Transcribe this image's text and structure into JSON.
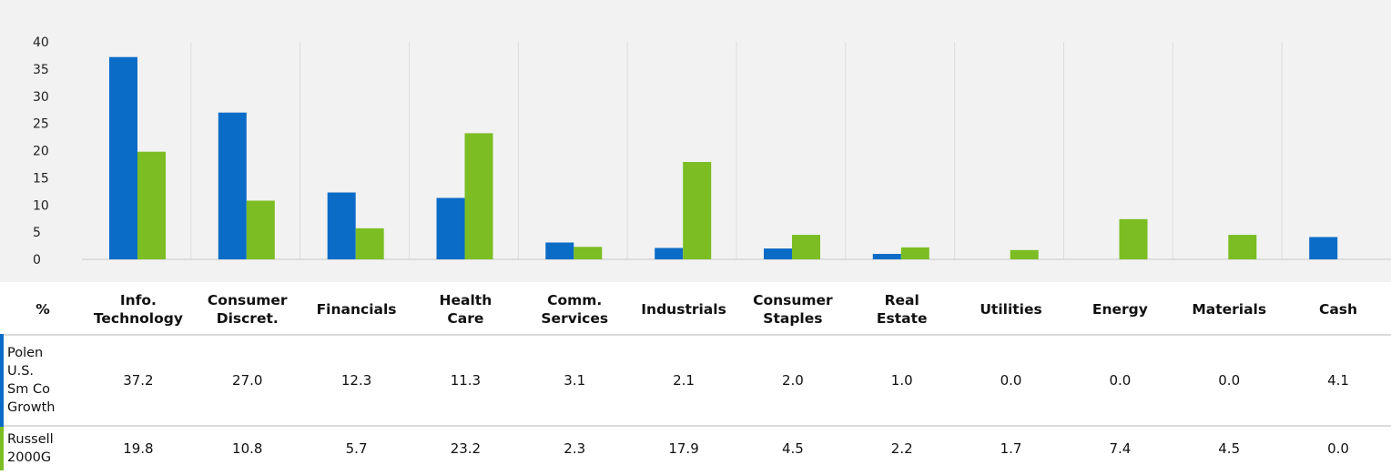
{
  "chart_data": {
    "type": "bar",
    "categories": [
      "Info. Technology",
      "Consumer Discret.",
      "Financials",
      "Health Care",
      "Comm. Services",
      "Industrials",
      "Consumer Staples",
      "Real Estate",
      "Utilities",
      "Energy",
      "Materials",
      "Cash"
    ],
    "series": [
      {
        "name": "Polen U.S. Sm Co Growth",
        "values": [
          37.2,
          27.0,
          12.3,
          11.3,
          3.1,
          2.1,
          2.0,
          1.0,
          0.0,
          0.0,
          0.0,
          4.1
        ],
        "color": "#0a6cc7"
      },
      {
        "name": "Russell 2000G",
        "values": [
          19.8,
          10.8,
          5.7,
          23.2,
          2.3,
          17.9,
          4.5,
          2.2,
          1.7,
          7.4,
          4.5,
          0.0
        ],
        "color": "#7bbd23"
      }
    ],
    "ylim": [
      0,
      40
    ],
    "yticks": [
      "0",
      "5",
      "10",
      "15",
      "20",
      "25",
      "30",
      "35",
      "40"
    ],
    "grid": "vertical separators",
    "background": "#f2f2f2"
  },
  "table": {
    "unit_header": "%",
    "column_headers": [
      [
        "Info.",
        "Technology"
      ],
      [
        "Consumer",
        "Discret."
      ],
      [
        "Financials"
      ],
      [
        "Health",
        "Care"
      ],
      [
        "Comm.",
        "Services"
      ],
      [
        "Industrials"
      ],
      [
        "Consumer",
        "Staples"
      ],
      [
        "Real",
        "Estate"
      ],
      [
        "Utilities"
      ],
      [
        "Energy"
      ],
      [
        "Materials"
      ],
      [
        "Cash"
      ]
    ],
    "rows": [
      {
        "label_lines": [
          "Polen",
          "U.S.",
          "Sm Co",
          "Growth"
        ],
        "values": [
          "37.2",
          "27.0",
          "12.3",
          "11.3",
          "3.1",
          "2.1",
          "2.0",
          "1.0",
          "0.0",
          "0.0",
          "0.0",
          "4.1"
        ]
      },
      {
        "label_lines": [
          "Russell",
          "2000G"
        ],
        "values": [
          "19.8",
          "10.8",
          "5.7",
          "23.2",
          "2.3",
          "17.9",
          "4.5",
          "2.2",
          "1.7",
          "7.4",
          "4.5",
          "0.0"
        ]
      }
    ]
  }
}
